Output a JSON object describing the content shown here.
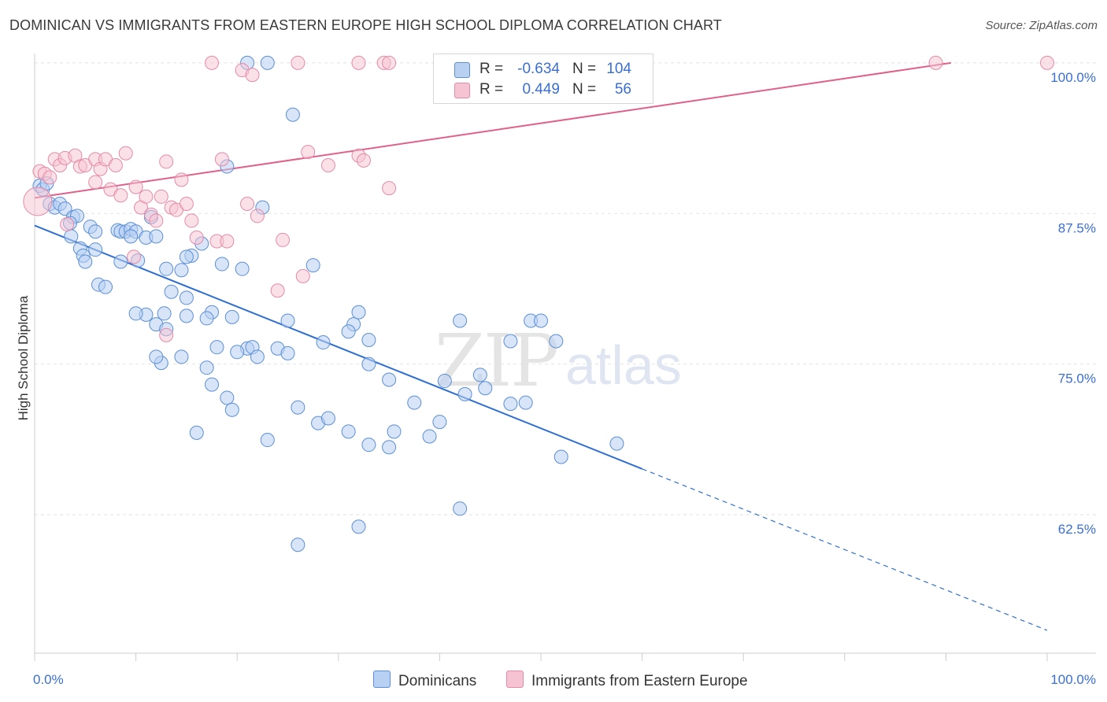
{
  "title": "DOMINICAN VS IMMIGRANTS FROM EASTERN EUROPE HIGH SCHOOL DIPLOMA CORRELATION CHART",
  "source": "Source: ZipAtlas.com",
  "watermark": {
    "zip": "ZIP",
    "atlas": "atlas"
  },
  "legend": {
    "row1": {
      "r_label": "R =",
      "r_value": "-0.634",
      "n_label": "N =",
      "n_value": "104"
    },
    "row2": {
      "r_label": "R =",
      "r_value": "0.449",
      "n_label": "N =",
      "n_value": "56"
    }
  },
  "colors": {
    "blue_fill": "#b8d0f2",
    "blue_stroke": "#5b8fd6",
    "blue_line": "#2f6fd0",
    "pink_fill": "#f6c3d2",
    "pink_stroke": "#e58aa8",
    "pink_line": "#e0608c",
    "grid": "#e2e2e2",
    "axis_text": "#3a6fd0"
  },
  "chart_data": {
    "type": "scatter",
    "title": "DOMINICAN VS IMMIGRANTS FROM EASTERN EUROPE HIGH SCHOOL DIPLOMA CORRELATION CHART",
    "xlabel": "",
    "ylabel": "High School Diploma",
    "xlim": [
      0,
      100
    ],
    "ylim": [
      51,
      101.3
    ],
    "x_tick_labels": [
      "0.0%",
      "100.0%"
    ],
    "y_ticks": [
      62.5,
      75.0,
      87.5,
      100.0
    ],
    "y_tick_labels": [
      "62.5%",
      "75.0%",
      "87.5%",
      "100.0%"
    ],
    "legend_position": "bottom",
    "series": [
      {
        "name": "Dominicans",
        "r": -0.634,
        "n": 104,
        "trend": {
          "x0": 0,
          "y0": 86.5,
          "x1": 60,
          "y1": 66.3,
          "dash_to_x": 100,
          "dash_to_y": 52.9
        },
        "points": [
          [
            0.5,
            89.8
          ],
          [
            0.8,
            89.5
          ],
          [
            1.2,
            90.0
          ],
          [
            1.5,
            88.3
          ],
          [
            2.0,
            88.0
          ],
          [
            2.5,
            88.3
          ],
          [
            3.0,
            87.9
          ],
          [
            3.8,
            87.2
          ],
          [
            4.2,
            87.3
          ],
          [
            3.5,
            86.7
          ],
          [
            3.6,
            85.6
          ],
          [
            5.5,
            86.4
          ],
          [
            6.0,
            86.0
          ],
          [
            8.2,
            86.1
          ],
          [
            8.5,
            86.0
          ],
          [
            9.0,
            86.0
          ],
          [
            9.5,
            86.2
          ],
          [
            10.0,
            86.0
          ],
          [
            9.5,
            85.6
          ],
          [
            4.5,
            84.6
          ],
          [
            4.8,
            84.0
          ],
          [
            5.0,
            83.5
          ],
          [
            6.0,
            84.5
          ],
          [
            8.5,
            83.5
          ],
          [
            10.2,
            83.6
          ],
          [
            11.0,
            85.5
          ],
          [
            12.0,
            85.6
          ],
          [
            11.5,
            87.2
          ],
          [
            14.5,
            82.8
          ],
          [
            13.0,
            82.9
          ],
          [
            15.5,
            84.0
          ],
          [
            15.0,
            83.9
          ],
          [
            16.5,
            85.0
          ],
          [
            18.5,
            83.3
          ],
          [
            20.5,
            82.9
          ],
          [
            6.3,
            81.6
          ],
          [
            7.0,
            81.4
          ],
          [
            12.8,
            79.2
          ],
          [
            11.0,
            79.1
          ],
          [
            10.0,
            79.2
          ],
          [
            12.0,
            78.3
          ],
          [
            13.0,
            77.9
          ],
          [
            15.0,
            79.0
          ],
          [
            17.5,
            79.3
          ],
          [
            13.5,
            81.0
          ],
          [
            15.0,
            80.5
          ],
          [
            19.5,
            78.9
          ],
          [
            17.0,
            78.8
          ],
          [
            18.0,
            76.4
          ],
          [
            21.0,
            76.3
          ],
          [
            21.5,
            76.4
          ],
          [
            20.0,
            76.0
          ],
          [
            22.0,
            75.6
          ],
          [
            24.0,
            76.3
          ],
          [
            25.0,
            75.9
          ],
          [
            12.5,
            75.1
          ],
          [
            12.0,
            75.6
          ],
          [
            14.5,
            75.6
          ],
          [
            17.0,
            74.7
          ],
          [
            17.5,
            73.3
          ],
          [
            19.0,
            72.2
          ],
          [
            19.5,
            71.2
          ],
          [
            16.0,
            69.3
          ],
          [
            23.0,
            68.7
          ],
          [
            26.0,
            71.4
          ],
          [
            28.0,
            70.1
          ],
          [
            29.0,
            70.5
          ],
          [
            31.0,
            69.4
          ],
          [
            33.0,
            68.3
          ],
          [
            35.0,
            68.1
          ],
          [
            35.5,
            69.4
          ],
          [
            37.5,
            71.8
          ],
          [
            39.0,
            69.0
          ],
          [
            40.0,
            70.2
          ],
          [
            40.5,
            73.6
          ],
          [
            42.5,
            72.5
          ],
          [
            44.0,
            74.1
          ],
          [
            44.5,
            73.0
          ],
          [
            47.0,
            71.7
          ],
          [
            48.5,
            71.8
          ],
          [
            47.0,
            76.9
          ],
          [
            49.0,
            78.6
          ],
          [
            50.0,
            78.6
          ],
          [
            51.5,
            76.9
          ],
          [
            32.0,
            79.3
          ],
          [
            31.5,
            78.3
          ],
          [
            28.5,
            76.8
          ],
          [
            25.0,
            78.6
          ],
          [
            31.0,
            77.7
          ],
          [
            33.0,
            77.0
          ],
          [
            33.0,
            75.0
          ],
          [
            35.0,
            73.7
          ],
          [
            42.0,
            78.6
          ],
          [
            22.5,
            88.0
          ],
          [
            23.0,
            100.0
          ],
          [
            21.0,
            100.0
          ],
          [
            25.5,
            95.7
          ],
          [
            19.0,
            91.4
          ],
          [
            27.5,
            83.2
          ],
          [
            42.0,
            63.0
          ],
          [
            26.0,
            60.0
          ],
          [
            32.0,
            61.5
          ],
          [
            57.5,
            68.4
          ],
          [
            52.0,
            67.3
          ]
        ]
      },
      {
        "name": "Immigrants from Eastern Europe",
        "r": 0.449,
        "n": 56,
        "trend": {
          "x0": 0,
          "y0": 88.8,
          "x1": 90.5,
          "y1": 100.0
        },
        "points": [
          [
            0.3,
            88.5
          ],
          [
            0.5,
            91.0
          ],
          [
            1.0,
            90.8
          ],
          [
            1.5,
            90.5
          ],
          [
            2.0,
            92.0
          ],
          [
            2.5,
            91.5
          ],
          [
            3.0,
            92.1
          ],
          [
            4.0,
            92.3
          ],
          [
            4.5,
            91.4
          ],
          [
            5.0,
            91.5
          ],
          [
            6.0,
            92.0
          ],
          [
            6.5,
            91.2
          ],
          [
            7.0,
            92.0
          ],
          [
            7.5,
            89.5
          ],
          [
            8.0,
            91.5
          ],
          [
            6.0,
            90.1
          ],
          [
            8.5,
            89.0
          ],
          [
            9.0,
            92.5
          ],
          [
            10.0,
            89.7
          ],
          [
            10.5,
            88.0
          ],
          [
            11.0,
            88.9
          ],
          [
            11.5,
            87.4
          ],
          [
            12.0,
            86.9
          ],
          [
            12.5,
            88.9
          ],
          [
            13.0,
            91.8
          ],
          [
            13.5,
            88.0
          ],
          [
            14.0,
            87.8
          ],
          [
            14.5,
            90.3
          ],
          [
            15.0,
            88.3
          ],
          [
            15.5,
            86.9
          ],
          [
            16.0,
            85.5
          ],
          [
            18.0,
            85.2
          ],
          [
            19.0,
            85.2
          ],
          [
            18.5,
            92.0
          ],
          [
            21.0,
            88.3
          ],
          [
            22.0,
            87.3
          ],
          [
            24.5,
            85.3
          ],
          [
            24.0,
            81.1
          ],
          [
            26.5,
            82.3
          ],
          [
            27.0,
            92.6
          ],
          [
            29.0,
            91.5
          ],
          [
            32.0,
            92.3
          ],
          [
            32.5,
            91.9
          ],
          [
            35.0,
            89.6
          ],
          [
            9.8,
            83.9
          ],
          [
            13.0,
            77.4
          ],
          [
            3.2,
            86.6
          ],
          [
            17.5,
            100.0
          ],
          [
            20.5,
            99.4
          ],
          [
            21.5,
            99.0
          ],
          [
            26.0,
            100.0
          ],
          [
            32.0,
            100.0
          ],
          [
            34.5,
            100.0
          ],
          [
            35.0,
            100.0
          ],
          [
            89.0,
            100.0
          ],
          [
            100.0,
            100.0
          ]
        ]
      }
    ]
  },
  "bottom_legend": {
    "dominicans": "Dominicans",
    "eastern_europe": "Immigrants from Eastern Europe"
  }
}
